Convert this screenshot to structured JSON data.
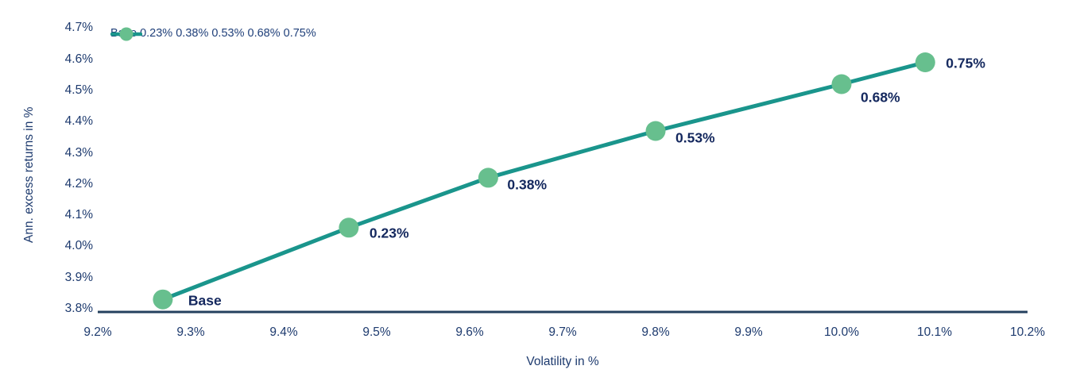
{
  "chart_data": {
    "type": "line",
    "title": "",
    "xlabel": "Volatility in %",
    "ylabel": "Ann. excess returns in %",
    "grid": false,
    "legend": {
      "label": "Base 0.23% 0.38% 0.53% 0.68% 0.75%",
      "position": "top-left"
    },
    "colors": {
      "line": "#1a958c",
      "marker": "#67bf8e",
      "axis": "#24405e",
      "tick_text": "#1d3a6e",
      "point_label_text": "#14285e"
    },
    "x_axis": {
      "label": "Volatility in %",
      "lim": [
        9.2,
        10.2
      ],
      "ticks": [
        {
          "label": "9.2%",
          "value": 9.2
        },
        {
          "label": "9.3%",
          "value": 9.3
        },
        {
          "label": "9.4%",
          "value": 9.4
        },
        {
          "label": "9.5%",
          "value": 9.5
        },
        {
          "label": "9.6%",
          "value": 9.6
        },
        {
          "label": "9.7%",
          "value": 9.7
        },
        {
          "label": "9.8%",
          "value": 9.8
        },
        {
          "label": "9.9%",
          "value": 9.9
        },
        {
          "label": "10.0%",
          "value": 10.0
        },
        {
          "label": "10.1%",
          "value": 10.1
        },
        {
          "label": "10.2%",
          "value": 10.2
        }
      ]
    },
    "y_axis": {
      "label": "Ann. excess returns in %",
      "lim": [
        3.8,
        4.7
      ],
      "ticks": [
        {
          "label": "3.8%",
          "value": 3.8
        },
        {
          "label": "3.9%",
          "value": 3.9
        },
        {
          "label": "4.0%",
          "value": 4.0
        },
        {
          "label": "4.1%",
          "value": 4.1
        },
        {
          "label": "4.2%",
          "value": 4.2
        },
        {
          "label": "4.3%",
          "value": 4.3
        },
        {
          "label": "4.4%",
          "value": 4.4
        },
        {
          "label": "4.5%",
          "value": 4.5
        },
        {
          "label": "4.6%",
          "value": 4.6
        },
        {
          "label": "4.7%",
          "value": 4.7
        }
      ]
    },
    "series": [
      {
        "name": "Base 0.23% 0.38% 0.53% 0.68% 0.75%",
        "points": [
          {
            "label": "Base",
            "x": 9.27,
            "y": 3.83,
            "label_dx": 32,
            "label_dy": 2
          },
          {
            "label": "0.23%",
            "x": 9.47,
            "y": 4.06,
            "label_dx": 26,
            "label_dy": 7
          },
          {
            "label": "0.38%",
            "x": 9.62,
            "y": 4.22,
            "label_dx": 24,
            "label_dy": 9
          },
          {
            "label": "0.53%",
            "x": 9.8,
            "y": 4.37,
            "label_dx": 25,
            "label_dy": 9
          },
          {
            "label": "0.68%",
            "x": 10.0,
            "y": 4.52,
            "label_dx": 24,
            "label_dy": 17
          },
          {
            "label": "0.75%",
            "x": 10.09,
            "y": 4.59,
            "label_dx": 26,
            "label_dy": 1
          }
        ]
      }
    ]
  }
}
